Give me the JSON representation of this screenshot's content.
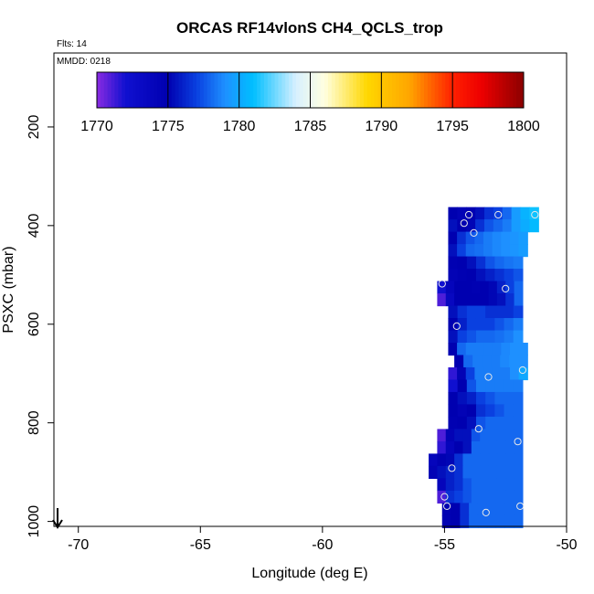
{
  "chart_data": {
    "type": "heatmap",
    "title": "ORCAS RF14vlonS CH4_QCLS_trop",
    "flights_label": "Flts: 14",
    "date_label": "MMDD: 0218",
    "xlabel": "Longitude (deg E)",
    "ylabel": "PSXC (mbar)",
    "xlim": [
      -71,
      -50
    ],
    "ylim": [
      1010,
      50
    ],
    "x_ticks": [
      -70,
      -65,
      -60,
      -55,
      -50
    ],
    "x_tick_labels": [
      "-70",
      "-65",
      "-60",
      "-55",
      "-50"
    ],
    "y_ticks": [
      200,
      400,
      600,
      800,
      1000
    ],
    "y_tick_labels": [
      "200",
      "400",
      "600",
      "800",
      "1000"
    ],
    "colorbar": {
      "min": 1770,
      "max": 1800,
      "ticks": [
        1770,
        1775,
        1780,
        1785,
        1790,
        1795,
        1800
      ],
      "tick_labels": [
        "1770",
        "1775",
        "1780",
        "1785",
        "1790",
        "1795",
        "1800"
      ],
      "stops": [
        {
          "v": 1770,
          "c": "#8a2be2"
        },
        {
          "v": 1772,
          "c": "#1010d0"
        },
        {
          "v": 1775,
          "c": "#0000b0"
        },
        {
          "v": 1777,
          "c": "#0a40e0"
        },
        {
          "v": 1779,
          "c": "#1e90ff"
        },
        {
          "v": 1781,
          "c": "#00bfff"
        },
        {
          "v": 1784,
          "c": "#d8f0ff"
        },
        {
          "v": 1786,
          "c": "#ffffe0"
        },
        {
          "v": 1789,
          "c": "#ffd700"
        },
        {
          "v": 1792,
          "c": "#ffa500"
        },
        {
          "v": 1795,
          "c": "#ff2000"
        },
        {
          "v": 1797,
          "c": "#ee0000"
        },
        {
          "v": 1800,
          "c": "#8b0000"
        }
      ]
    },
    "bin_height_mbar": 25,
    "rows": [
      {
        "p": 375,
        "x0": -54.85,
        "x1": -51.15,
        "vals": [
          1775.0,
          1774.5,
          1774.8,
          1775.5,
          1776.5,
          1777.0,
          1778.0,
          1779.5,
          1780.5,
          1781.2
        ]
      },
      {
        "p": 400,
        "x0": -54.85,
        "x1": -51.15,
        "vals": [
          1775.5,
          1775.0,
          1775.2,
          1776.5,
          1777.5,
          1778.0,
          1778.5,
          1779.5,
          1780.2,
          1780.8
        ]
      },
      {
        "p": 425,
        "x0": -54.85,
        "x1": -51.6,
        "vals": [
          1775.0,
          1776.5,
          1777.5,
          1778.0,
          1778.5,
          1778.8,
          1779.0,
          1779.2,
          1779.5
        ]
      },
      {
        "p": 450,
        "x0": -54.85,
        "x1": -51.6,
        "vals": [
          1775.5,
          1777.0,
          1778.0,
          1778.2,
          1778.5,
          1778.8,
          1779.0,
          1779.2,
          1779.5
        ]
      },
      {
        "p": 475,
        "x0": -54.85,
        "x1": -51.8,
        "vals": [
          1774.8,
          1775.0,
          1775.5,
          1776.5,
          1777.5,
          1778.0,
          1778.3,
          1778.5
        ]
      },
      {
        "p": 500,
        "x0": -54.85,
        "x1": -51.8,
        "vals": [
          1774.5,
          1774.8,
          1775.0,
          1775.5,
          1776.0,
          1776.5,
          1777.0,
          1777.5
        ]
      },
      {
        "p": 525,
        "x0": -55.3,
        "x1": -51.8,
        "vals": [
          1772.0,
          1774.0,
          1775.0,
          1775.0,
          1774.8,
          1775.0,
          1775.2,
          1776.0,
          1777.0,
          1778.0
        ]
      },
      {
        "p": 550,
        "x0": -55.3,
        "x1": -51.8,
        "vals": [
          1771.0,
          1773.5,
          1775.0,
          1775.0,
          1775.0,
          1775.0,
          1775.2,
          1775.5,
          1776.5,
          1778.0
        ]
      },
      {
        "p": 575,
        "x0": -54.85,
        "x1": -51.8,
        "vals": [
          1775.5,
          1776.5,
          1777.0,
          1777.0,
          1776.5,
          1776.5,
          1776.5,
          1777.0
        ]
      },
      {
        "p": 600,
        "x0": -54.85,
        "x1": -51.8,
        "vals": [
          1775.0,
          1776.0,
          1777.0,
          1777.0,
          1777.0,
          1777.5,
          1778.0,
          1778.5
        ]
      },
      {
        "p": 625,
        "x0": -54.85,
        "x1": -51.8,
        "vals": [
          1775.5,
          1777.0,
          1777.5,
          1778.0,
          1778.0,
          1778.2,
          1778.5,
          1779.0
        ]
      },
      {
        "p": 650,
        "x0": -54.85,
        "x1": -51.6,
        "vals": [
          1775.0,
          1778.0,
          1778.5,
          1778.5,
          1778.5,
          1778.5,
          1778.8,
          1779.0,
          1779.0
        ]
      },
      {
        "p": 675,
        "x0": -54.6,
        "x1": -51.6,
        "vals": [
          1775.0,
          1778.0,
          1778.5,
          1778.5,
          1778.5,
          1778.8,
          1779.0,
          1779.0
        ]
      },
      {
        "p": 700,
        "x0": -54.85,
        "x1": -51.6,
        "vals": [
          1771.5,
          1774.5,
          1777.0,
          1778.5,
          1778.5,
          1778.5,
          1778.5,
          1779.0,
          1780.0
        ]
      },
      {
        "p": 725,
        "x0": -54.85,
        "x1": -51.8,
        "vals": [
          1772.0,
          1775.0,
          1777.5,
          1778.5,
          1778.5,
          1778.5,
          1778.5,
          1778.5
        ]
      },
      {
        "p": 750,
        "x0": -54.85,
        "x1": -51.8,
        "vals": [
          1775.0,
          1775.5,
          1776.0,
          1777.0,
          1777.5,
          1778.0,
          1778.0,
          1778.0
        ]
      },
      {
        "p": 775,
        "x0": -54.85,
        "x1": -51.8,
        "vals": [
          1775.0,
          1774.5,
          1775.0,
          1776.5,
          1777.0,
          1777.5,
          1778.0,
          1778.0
        ]
      },
      {
        "p": 800,
        "x0": -54.85,
        "x1": -51.8,
        "vals": [
          1774.8,
          1775.0,
          1775.5,
          1777.5,
          1778.0,
          1778.0,
          1778.0,
          1778.0
        ]
      },
      {
        "p": 825,
        "x0": -55.3,
        "x1": -51.8,
        "vals": [
          1771.0,
          1774.5,
          1775.5,
          1775.5,
          1777.5,
          1778.0,
          1778.0,
          1778.0,
          1778.0,
          1778.0
        ]
      },
      {
        "p": 850,
        "x0": -55.3,
        "x1": -51.8,
        "vals": [
          1771.5,
          1774.0,
          1775.0,
          1775.5,
          1778.0,
          1778.0,
          1778.0,
          1778.0,
          1778.0,
          1778.0
        ]
      },
      {
        "p": 875,
        "x0": -55.65,
        "x1": -51.8,
        "vals": [
          1774.0,
          1774.8,
          1775.2,
          1776.5,
          1778.0,
          1778.0,
          1778.0,
          1778.0,
          1778.0,
          1778.0,
          1778.0
        ]
      },
      {
        "p": 900,
        "x0": -55.65,
        "x1": -51.8,
        "vals": [
          1774.5,
          1775.5,
          1776.0,
          1776.5,
          1778.0,
          1778.0,
          1778.0,
          1778.0,
          1778.0,
          1778.0,
          1778.0
        ]
      },
      {
        "p": 925,
        "x0": -55.3,
        "x1": -51.8,
        "vals": [
          1774.0,
          1776.0,
          1776.5,
          1777.5,
          1778.0,
          1778.0,
          1778.0,
          1778.0,
          1778.0,
          1778.0
        ]
      },
      {
        "p": 950,
        "x0": -55.3,
        "x1": -51.8,
        "vals": [
          1771.0,
          1776.5,
          1777.0,
          1777.5,
          1778.0,
          1778.0,
          1778.0,
          1778.0,
          1778.0,
          1778.0
        ]
      },
      {
        "p": 975,
        "x0": -55.1,
        "x1": -51.8,
        "vals": [
          1774.8,
          1775.0,
          1776.5,
          1778.0,
          1778.0,
          1778.0,
          1778.0,
          1778.0,
          1778.0
        ]
      },
      {
        "p": 1000,
        "x0": -55.1,
        "x1": -51.8,
        "vals": [
          1774.8,
          1775.0,
          1776.5,
          1778.0,
          1778.0,
          1778.0,
          1778.0,
          1778.0,
          1778.0
        ]
      }
    ],
    "points": [
      {
        "x": -54.0,
        "p": 378
      },
      {
        "x": -52.8,
        "p": 378
      },
      {
        "x": -51.3,
        "p": 378
      },
      {
        "x": -54.2,
        "p": 395
      },
      {
        "x": -53.8,
        "p": 415
      },
      {
        "x": -55.1,
        "p": 518
      },
      {
        "x": -52.5,
        "p": 528
      },
      {
        "x": -54.5,
        "p": 604
      },
      {
        "x": -51.8,
        "p": 693
      },
      {
        "x": -53.2,
        "p": 707
      },
      {
        "x": -53.6,
        "p": 812
      },
      {
        "x": -52.0,
        "p": 838
      },
      {
        "x": -54.7,
        "p": 892
      },
      {
        "x": -55.0,
        "p": 950
      },
      {
        "x": -54.9,
        "p": 969
      },
      {
        "x": -51.9,
        "p": 969
      },
      {
        "x": -53.3,
        "p": 982
      }
    ]
  }
}
